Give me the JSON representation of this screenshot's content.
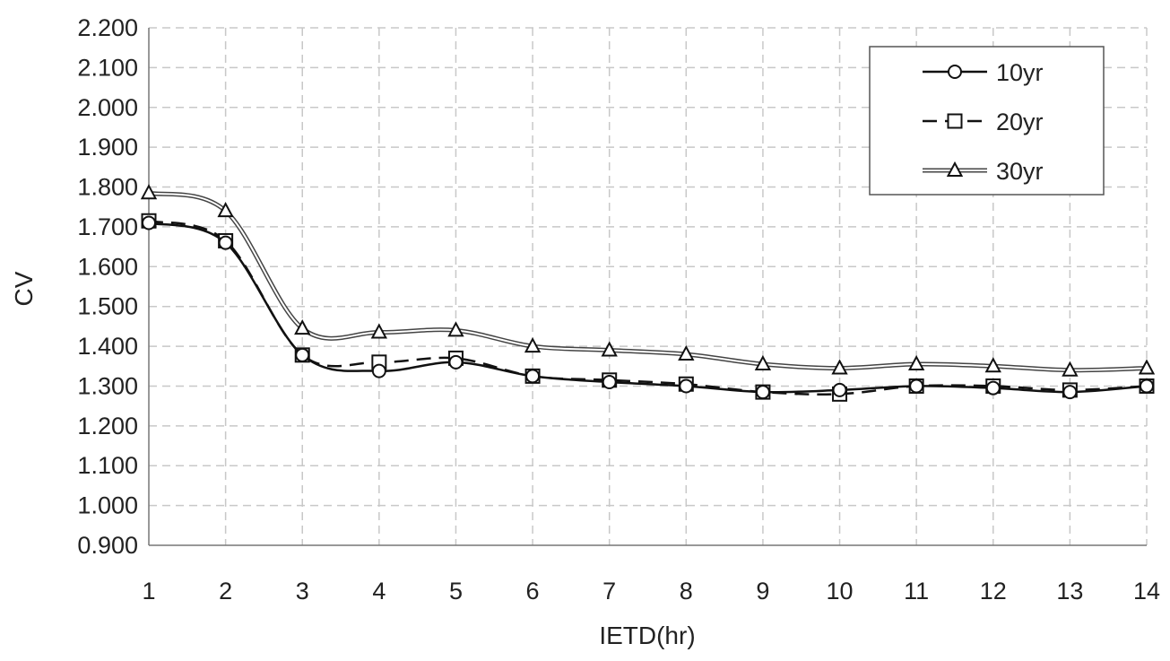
{
  "chart_data": {
    "type": "line",
    "title": "",
    "xlabel": "IETD(hr)",
    "ylabel": "CV",
    "x": [
      1,
      2,
      3,
      4,
      5,
      6,
      7,
      8,
      9,
      10,
      11,
      12,
      13,
      14
    ],
    "xlim": [
      1,
      14
    ],
    "ylim": [
      0.9,
      2.2
    ],
    "y_ticks": [
      "0.900",
      "1.000",
      "1.100",
      "1.200",
      "1.300",
      "1.400",
      "1.500",
      "1.600",
      "1.700",
      "1.800",
      "1.900",
      "2.000",
      "2.100",
      "2.200"
    ],
    "x_ticks": [
      "1",
      "2",
      "3",
      "4",
      "5",
      "6",
      "7",
      "8",
      "9",
      "10",
      "11",
      "12",
      "13",
      "14"
    ],
    "grid": true,
    "legend_position": "top-right",
    "series": [
      {
        "name": "10yr",
        "marker": "circle",
        "line_style": "solid",
        "values": [
          1.71,
          1.66,
          1.378,
          1.338,
          1.36,
          1.325,
          1.31,
          1.3,
          1.285,
          1.29,
          1.3,
          1.295,
          1.285,
          1.3
        ]
      },
      {
        "name": "20yr",
        "marker": "square",
        "line_style": "dashed",
        "values": [
          1.715,
          1.665,
          1.378,
          1.36,
          1.37,
          1.325,
          1.315,
          1.305,
          1.285,
          1.28,
          1.3,
          1.3,
          1.29,
          1.3
        ]
      },
      {
        "name": "30yr",
        "marker": "triangle",
        "line_style": "double",
        "values": [
          1.785,
          1.74,
          1.445,
          1.435,
          1.44,
          1.4,
          1.39,
          1.38,
          1.355,
          1.345,
          1.355,
          1.35,
          1.34,
          1.345
        ]
      }
    ]
  }
}
